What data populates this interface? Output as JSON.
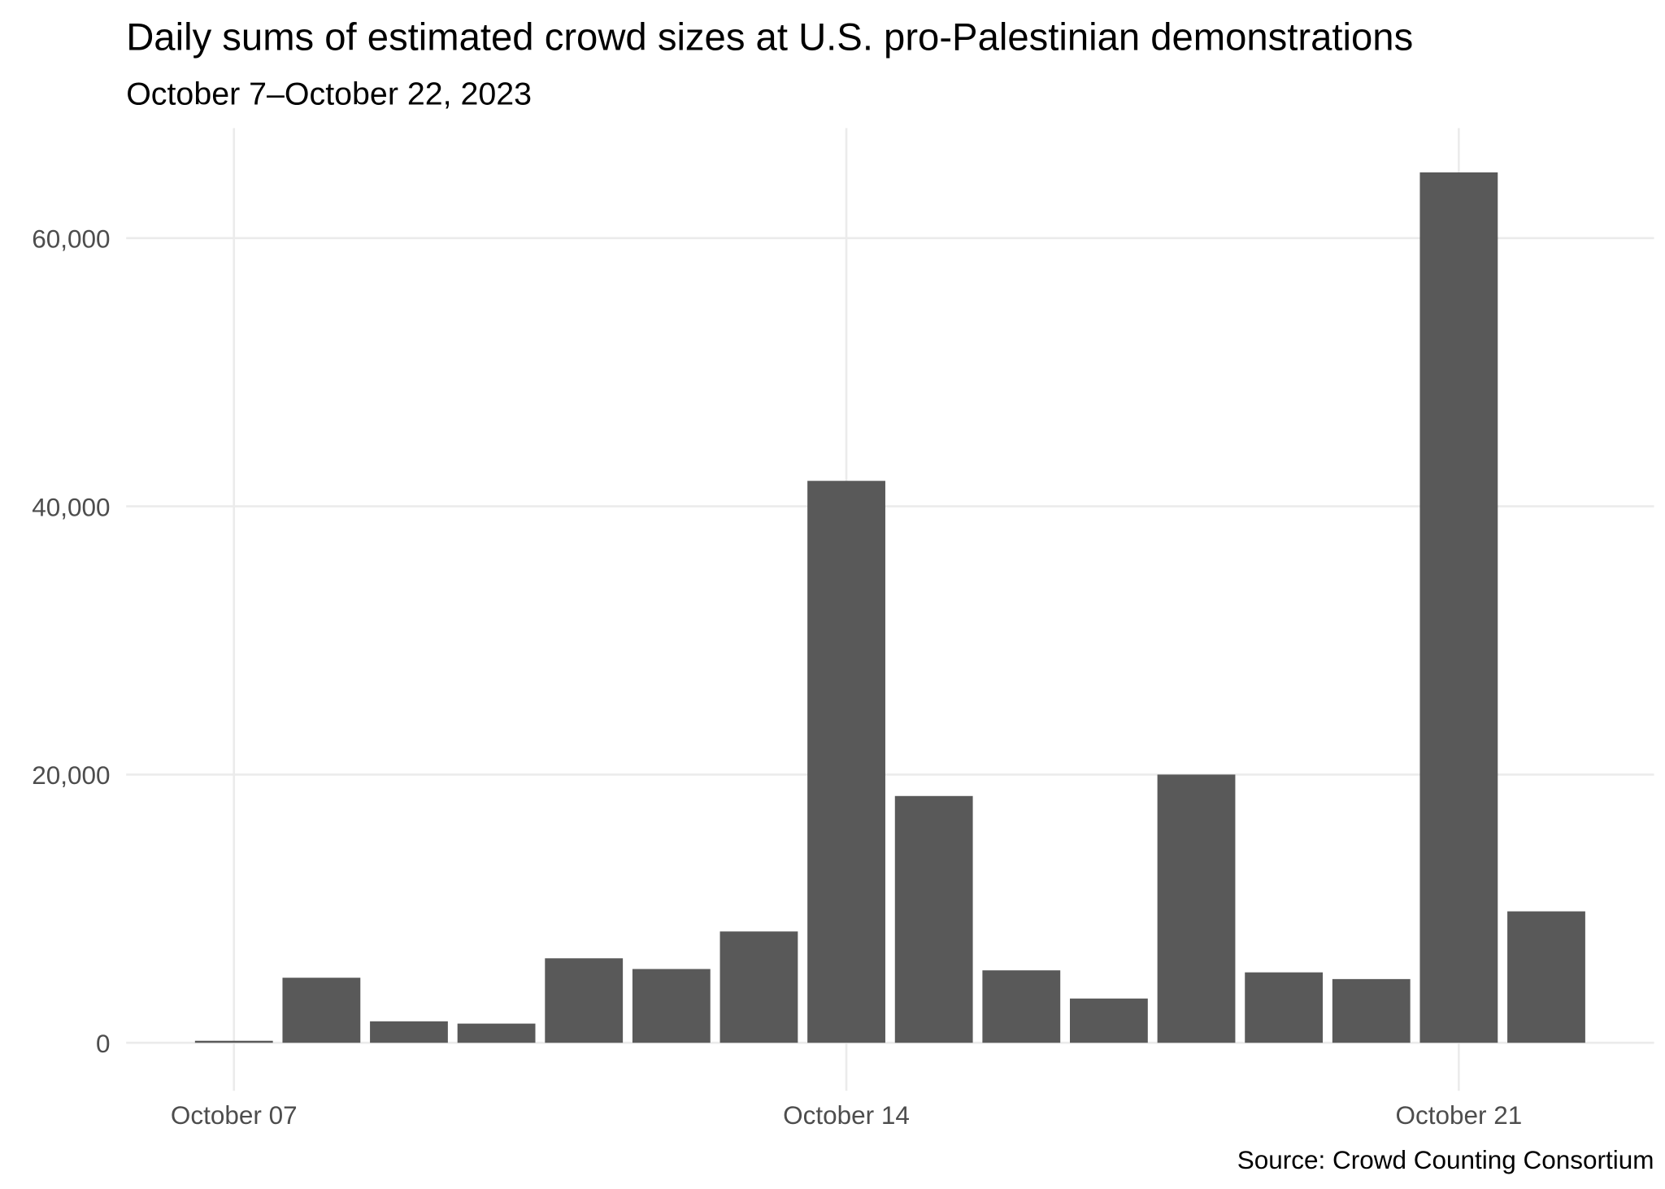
{
  "chart_data": {
    "type": "bar",
    "title": "Daily sums of estimated crowd sizes at U.S. pro-Palestinian demonstrations",
    "subtitle": "October 7–October 22, 2023",
    "caption": "Source: Crowd Counting Consortium",
    "xlabel": "",
    "ylabel": "",
    "categories": [
      "2023-10-07",
      "2023-10-08",
      "2023-10-09",
      "2023-10-10",
      "2023-10-11",
      "2023-10-12",
      "2023-10-13",
      "2023-10-14",
      "2023-10-15",
      "2023-10-16",
      "2023-10-17",
      "2023-10-18",
      "2023-10-19",
      "2023-10-20",
      "2023-10-21",
      "2023-10-22"
    ],
    "values": [
      150,
      4850,
      1600,
      1430,
      6300,
      5500,
      8300,
      41900,
      18400,
      5400,
      3300,
      20000,
      5250,
      4750,
      64900,
      9800
    ],
    "x_ticks": [
      {
        "date": "2023-10-07",
        "label": "October 07"
      },
      {
        "date": "2023-10-14",
        "label": "October 14"
      },
      {
        "date": "2023-10-21",
        "label": "October 21"
      }
    ],
    "y_ticks": [
      {
        "value": 0,
        "label": "0"
      },
      {
        "value": 20000,
        "label": "20,000"
      },
      {
        "value": 40000,
        "label": "40,000"
      },
      {
        "value": 60000,
        "label": "60,000"
      }
    ],
    "ylim": [
      0,
      68000
    ],
    "grid": true,
    "colors": {
      "bar": "#595959",
      "grid": "#ebebeb",
      "text": "#4d4d4d"
    }
  }
}
